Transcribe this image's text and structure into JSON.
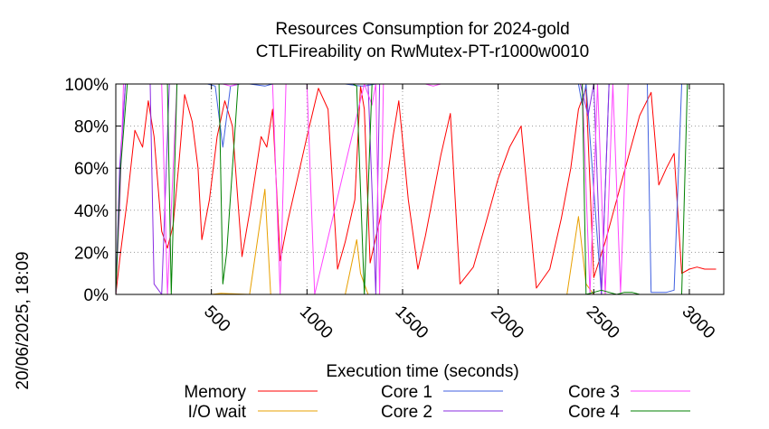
{
  "chart_data": {
    "type": "line",
    "title": "Resources Consumption for 2024-gold",
    "subtitle": "CTLFireability on RwMutex-PT-r1000w0010",
    "xlabel": "Execution time (seconds)",
    "ylabel": "",
    "side_label": "20/06/2025, 18:09",
    "xlim": [
      0,
      3180
    ],
    "ylim": [
      0,
      100
    ],
    "xticks": [
      500,
      1000,
      1500,
      2000,
      2500,
      3000
    ],
    "xtick_labels": [
      "500",
      "1000",
      "1500",
      "2000",
      "2500",
      "3000"
    ],
    "yticks": [
      0,
      20,
      40,
      60,
      80,
      100
    ],
    "ytick_labels": [
      "0%",
      "20%",
      "40%",
      "60%",
      "80%",
      "100%"
    ],
    "grid": true,
    "legend_position": "bottom",
    "series": [
      {
        "name": "Memory",
        "color": "#ff0000",
        "x": [
          0,
          25,
          60,
          100,
          140,
          170,
          200,
          240,
          270,
          300,
          330,
          360,
          400,
          430,
          450,
          490,
          530,
          570,
          610,
          660,
          700,
          760,
          790,
          820,
          860,
          900,
          950,
          1000,
          1060,
          1110,
          1160,
          1200,
          1250,
          1280,
          1300,
          1330,
          1380,
          1420,
          1450,
          1480,
          1530,
          1580,
          1620,
          1660,
          1700,
          1750,
          1800,
          1870,
          1930,
          2000,
          2060,
          2120,
          2200,
          2270,
          2330,
          2380,
          2420,
          2460,
          2500,
          2560,
          2620,
          2680,
          2740,
          2800,
          2840,
          2880,
          2920,
          2960,
          3000,
          3040,
          3080,
          3140
        ],
        "values": [
          0,
          20,
          45,
          78,
          70,
          92,
          75,
          30,
          22,
          33,
          62,
          95,
          82,
          60,
          26,
          45,
          75,
          92,
          80,
          18,
          39,
          75,
          70,
          88,
          16,
          35,
          55,
          75,
          98,
          88,
          12,
          25,
          45,
          99,
          88,
          15,
          35,
          55,
          75,
          92,
          45,
          12,
          28,
          47,
          66,
          86,
          5,
          13,
          32,
          55,
          70,
          80,
          3,
          12,
          36,
          60,
          88,
          98,
          8,
          25,
          45,
          65,
          85,
          96,
          52,
          60,
          67,
          10,
          12,
          13,
          12,
          12
        ]
      },
      {
        "name": "I/O wait",
        "color": "#e8a000",
        "x": [
          0,
          500,
          550,
          700,
          780,
          810,
          1200,
          1260,
          1280,
          1320,
          2360,
          2420,
          2460,
          2500,
          3180
        ],
        "values": [
          0,
          0,
          0.5,
          0,
          50,
          0,
          0,
          26,
          10,
          0,
          0,
          37,
          5,
          0,
          0
        ]
      },
      {
        "name": "Core 1",
        "color": "#4060e0",
        "x": [
          0,
          20,
          50,
          300,
          340,
          380,
          480,
          520,
          560,
          600,
          650,
          700,
          780,
          820,
          1000,
          1200,
          1280,
          1300,
          1360,
          1380,
          2420,
          2440,
          2460,
          2540,
          2580,
          2620,
          2660,
          2700,
          2780,
          2800,
          2840,
          2880,
          2920,
          2960,
          3180
        ],
        "values": [
          0,
          55,
          100,
          100,
          100,
          100,
          100,
          99,
          70,
          99,
          100,
          100,
          99,
          100,
          100,
          100,
          99,
          99,
          100,
          100,
          100,
          90,
          100,
          0,
          100,
          100,
          100,
          100,
          100,
          1,
          1,
          1,
          2,
          100,
          100
        ]
      },
      {
        "name": "Core 2",
        "color": "#8a2be2",
        "x": [
          0,
          20,
          50,
          180,
          200,
          240,
          280,
          320,
          700,
          740,
          820,
          860,
          1320,
          1360,
          1380,
          2430,
          2470,
          2500,
          2540,
          2580,
          2620,
          3180
        ],
        "values": [
          0,
          60,
          100,
          100,
          5,
          0,
          100,
          100,
          100,
          100,
          100,
          100,
          100,
          0,
          100,
          100,
          85,
          100,
          0,
          100,
          100,
          100
        ]
      },
      {
        "name": "Core 3",
        "color": "#ff44ff",
        "x": [
          0,
          20,
          40,
          240,
          270,
          320,
          560,
          600,
          640,
          820,
          860,
          890,
          1000,
          1040,
          1300,
          1340,
          1360,
          1380,
          1400,
          1420,
          1620,
          1660,
          1700,
          2400,
          2440,
          2480,
          2520,
          2560,
          2600,
          2640,
          2680,
          2720,
          3180
        ],
        "values": [
          0,
          40,
          100,
          100,
          0,
          100,
          100,
          99,
          100,
          100,
          0,
          100,
          100,
          0,
          100,
          90,
          100,
          0,
          100,
          100,
          100,
          99,
          100,
          100,
          100,
          0,
          100,
          0,
          100,
          1,
          100,
          100,
          100
        ]
      },
      {
        "name": "Core 4",
        "color": "#008000",
        "x": [
          0,
          25,
          60,
          270,
          290,
          320,
          540,
          560,
          580,
          640,
          1240,
          1260,
          1300,
          1340,
          1380,
          2440,
          2460,
          2500,
          2540,
          2580,
          2620,
          2660,
          2700,
          2740,
          2800,
          2960,
          2990,
          3180
        ],
        "values": [
          0,
          60,
          100,
          100,
          0,
          100,
          100,
          5,
          20,
          100,
          100,
          99,
          0,
          100,
          100,
          100,
          0,
          1,
          2,
          1,
          0,
          1,
          1,
          0,
          0,
          0,
          100,
          100
        ]
      }
    ]
  }
}
